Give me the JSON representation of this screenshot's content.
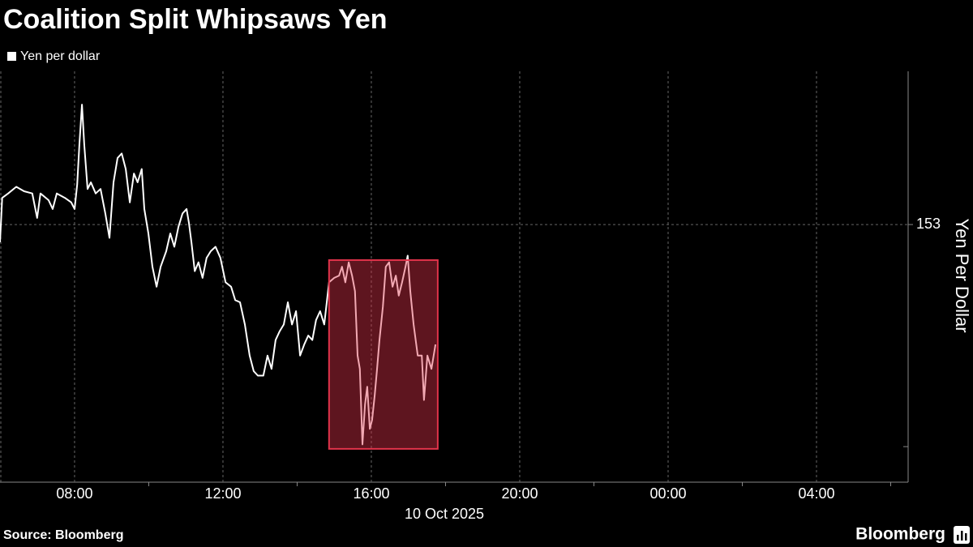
{
  "chart_data": {
    "type": "line",
    "title": "Coalition Split Whipsaws Yen",
    "y_label": "Yen Per Dollar",
    "x_label": "10 Oct 2025",
    "source": "Source: Bloomberg",
    "brand": "Bloomberg",
    "series": [
      {
        "name": "Yen per dollar",
        "color": "#ffffff",
        "x": [
          5.99,
          6.05,
          6.21,
          6.43,
          6.64,
          6.86,
          6.99,
          7.08,
          7.3,
          7.41,
          7.52,
          7.74,
          7.91,
          8.0,
          8.07,
          8.13,
          8.2,
          8.26,
          8.35,
          8.44,
          8.57,
          8.7,
          8.83,
          8.94,
          9.05,
          9.16,
          9.27,
          9.38,
          9.49,
          9.6,
          9.7,
          9.81,
          9.88,
          9.99,
          10.1,
          10.21,
          10.32,
          10.47,
          10.58,
          10.69,
          10.8,
          10.91,
          11.02,
          11.08,
          11.15,
          11.24,
          11.34,
          11.45,
          11.56,
          11.67,
          11.8,
          11.93,
          12.07,
          12.22,
          12.33,
          12.46,
          12.59,
          12.72,
          12.83,
          12.94,
          13.09,
          13.2,
          13.31,
          13.42,
          13.53,
          13.64,
          13.75,
          13.86,
          13.97,
          14.08,
          14.19,
          14.3,
          14.41,
          14.51,
          14.62,
          14.73,
          14.86,
          15.0,
          15.13,
          15.21,
          15.3,
          15.39,
          15.48,
          15.56,
          15.63,
          15.69,
          15.76,
          15.83,
          15.89,
          15.96,
          16.02,
          16.09,
          16.15,
          16.22,
          16.31,
          16.39,
          16.48,
          16.57,
          16.66,
          16.74,
          16.83,
          16.92,
          16.98,
          17.05,
          17.14,
          17.25,
          17.36,
          17.42,
          17.51,
          17.62,
          17.73
        ],
        "values": [
          152.92,
          153.12,
          153.14,
          153.17,
          153.15,
          153.14,
          153.03,
          153.14,
          153.11,
          153.07,
          153.14,
          153.12,
          153.1,
          153.07,
          153.18,
          153.36,
          153.54,
          153.36,
          153.16,
          153.19,
          153.14,
          153.16,
          153.05,
          152.94,
          153.19,
          153.3,
          153.32,
          153.25,
          153.1,
          153.23,
          153.19,
          153.25,
          153.07,
          152.96,
          152.81,
          152.72,
          152.81,
          152.88,
          152.96,
          152.9,
          152.99,
          153.05,
          153.07,
          153.01,
          152.92,
          152.79,
          152.83,
          152.76,
          152.85,
          152.88,
          152.9,
          152.85,
          152.74,
          152.72,
          152.66,
          152.65,
          152.55,
          152.41,
          152.34,
          152.32,
          152.32,
          152.41,
          152.35,
          152.48,
          152.52,
          152.55,
          152.65,
          152.55,
          152.61,
          152.41,
          152.46,
          152.5,
          152.48,
          152.57,
          152.61,
          152.55,
          152.74,
          152.76,
          152.77,
          152.81,
          152.74,
          152.83,
          152.77,
          152.7,
          152.41,
          152.35,
          152.01,
          152.19,
          152.27,
          152.08,
          152.12,
          152.23,
          152.34,
          152.48,
          152.63,
          152.81,
          152.83,
          152.72,
          152.77,
          152.68,
          152.74,
          152.81,
          152.86,
          152.7,
          152.55,
          152.41,
          152.41,
          152.21,
          152.41,
          152.35,
          152.46
        ]
      }
    ],
    "xlim": [
      5.99,
      30.47
    ],
    "xticks": [
      {
        "value": 8,
        "label": "08:00"
      },
      {
        "value": 12,
        "label": "12:00"
      },
      {
        "value": 16,
        "label": "16:00"
      },
      {
        "value": 20,
        "label": "20:00"
      },
      {
        "value": 24,
        "label": "00:00"
      },
      {
        "value": 28,
        "label": "04:00"
      }
    ],
    "xminorticks": [
      10,
      14,
      18,
      22,
      26,
      30
    ],
    "ylim": [
      151.84,
      153.69
    ],
    "yticks": [
      153
    ],
    "yminorticks": [
      152
    ],
    "grid": true,
    "highlight": {
      "x": [
        14.86,
        17.79
      ],
      "y": [
        151.99,
        152.84
      ],
      "color": "#e0334a"
    }
  }
}
